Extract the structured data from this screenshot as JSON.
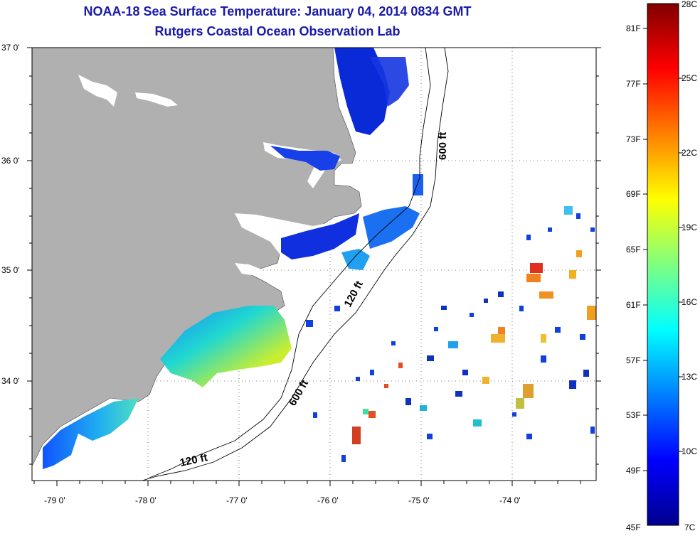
{
  "title": "NOAA-18 Sea Surface Temperature:  January 04, 2014 0834 GMT",
  "subtitle": "Rutgers Coastal Ocean Observation Lab",
  "lat_labels": [
    "37 0'",
    "36 0'",
    "35 0'",
    "34 0'"
  ],
  "lon_labels": [
    "-79 0'",
    "-78 0'",
    "-77 0'",
    "-76 0'",
    "-75 0'",
    "-74 0'"
  ],
  "contour_labels": {
    "c600_north": "600 ft",
    "c600_south": "600 ft",
    "c120_north": "120 ft",
    "c120_south": "120 ft"
  },
  "colorbar": {
    "min_label_c": "7C",
    "max_label_c": "28C",
    "min_label_f": "45F",
    "f_ticks": [
      "81F",
      "77F",
      "73F",
      "69F",
      "65F",
      "61F",
      "57F",
      "53F",
      "49F"
    ],
    "c_ticks": [
      "25C",
      "22C",
      "19C",
      "16C",
      "13C",
      "10C"
    ]
  },
  "colors": {
    "land": "#b0b0b0",
    "title": "#1a1aa8"
  }
}
